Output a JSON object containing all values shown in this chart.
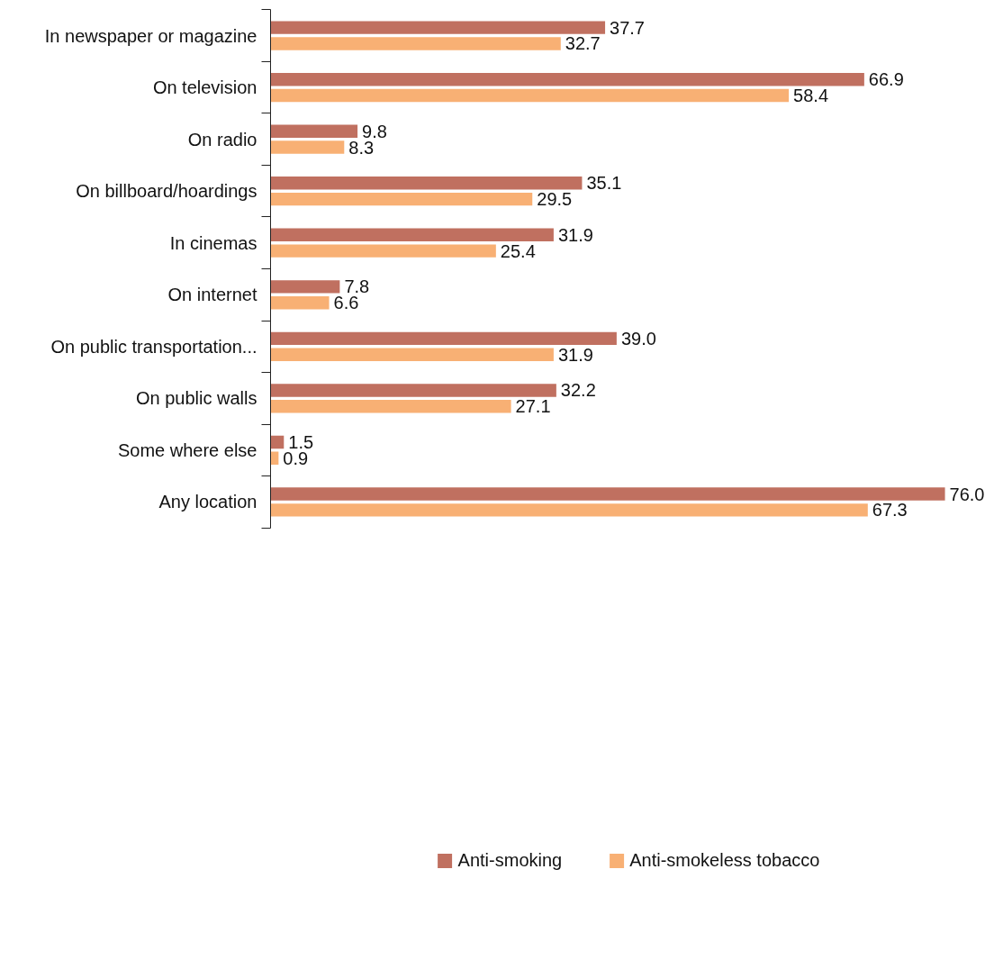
{
  "chart_data": {
    "type": "bar",
    "orientation": "horizontal",
    "categories": [
      "In newspaper or magazine",
      "On television",
      "On radio",
      "On billboard/hoardings",
      "In cinemas",
      "On internet",
      "On public transportation...",
      "On public walls",
      "Some where else",
      "Any location"
    ],
    "series": [
      {
        "name": "Anti-smoking",
        "color": "#c07060",
        "values": [
          37.7,
          66.9,
          9.8,
          35.1,
          31.9,
          7.8,
          39.0,
          32.2,
          1.5,
          76.0
        ],
        "value_labels": [
          "37.7",
          "66.9",
          "9.8",
          "35.1",
          "31.9",
          "7.8",
          "39.0",
          "32.2",
          "1.5",
          "76.0"
        ]
      },
      {
        "name": "Anti-smokeless tobacco",
        "color": "#f8b074",
        "values": [
          32.7,
          58.4,
          8.3,
          29.5,
          25.4,
          6.6,
          31.9,
          27.1,
          0.9,
          67.3
        ],
        "value_labels": [
          "32.7",
          "58.4",
          "8.3",
          "29.5",
          "25.4",
          "6.6",
          "31.9",
          "27.1",
          "0.9",
          "67.3"
        ]
      }
    ],
    "legend": "bottom",
    "grid": false
  }
}
